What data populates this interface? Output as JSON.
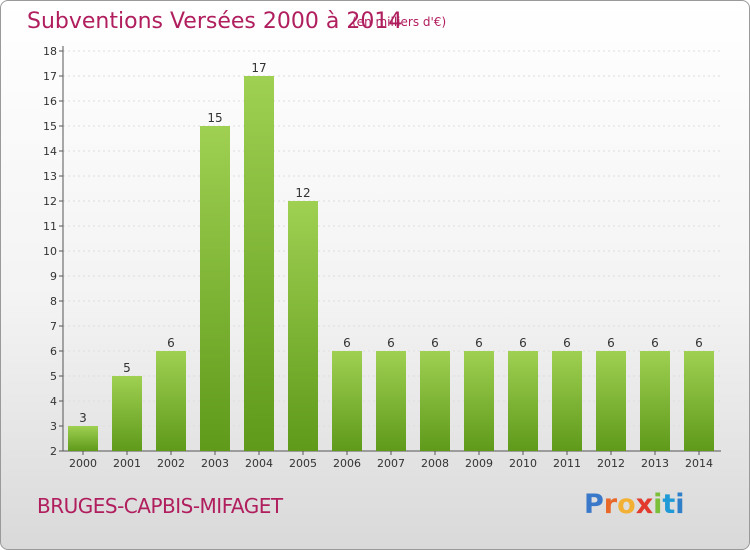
{
  "header": {
    "title": "Subventions Versées 2000 à 2014",
    "subtitle": "(en milliers d'€)"
  },
  "footer": {
    "commune": "BRUGES-CAPBIS-MIFAGET",
    "logo_text": "Proxiti"
  },
  "colors": {
    "title": "#b01e5e",
    "bar_top": "#9fd052",
    "bar_bottom": "#5f9a1a",
    "axis": "#555555",
    "grid": "#dddddd"
  },
  "chart_data": {
    "type": "bar",
    "title": "Subventions Versées 2000 à 2014",
    "subtitle": "(en milliers d'€)",
    "categories": [
      "2000",
      "2001",
      "2002",
      "2003",
      "2004",
      "2005",
      "2006",
      "2007",
      "2008",
      "2009",
      "2010",
      "2011",
      "2012",
      "2013",
      "2014"
    ],
    "values": [
      3,
      5,
      6,
      15,
      17,
      12,
      6,
      6,
      6,
      6,
      6,
      6,
      6,
      6,
      6
    ],
    "ylim": [
      2,
      18
    ],
    "yticks": [
      2,
      3,
      4,
      5,
      6,
      7,
      8,
      9,
      10,
      11,
      12,
      13,
      14,
      15,
      16,
      17,
      18
    ],
    "grid": true,
    "data_labels": true
  }
}
